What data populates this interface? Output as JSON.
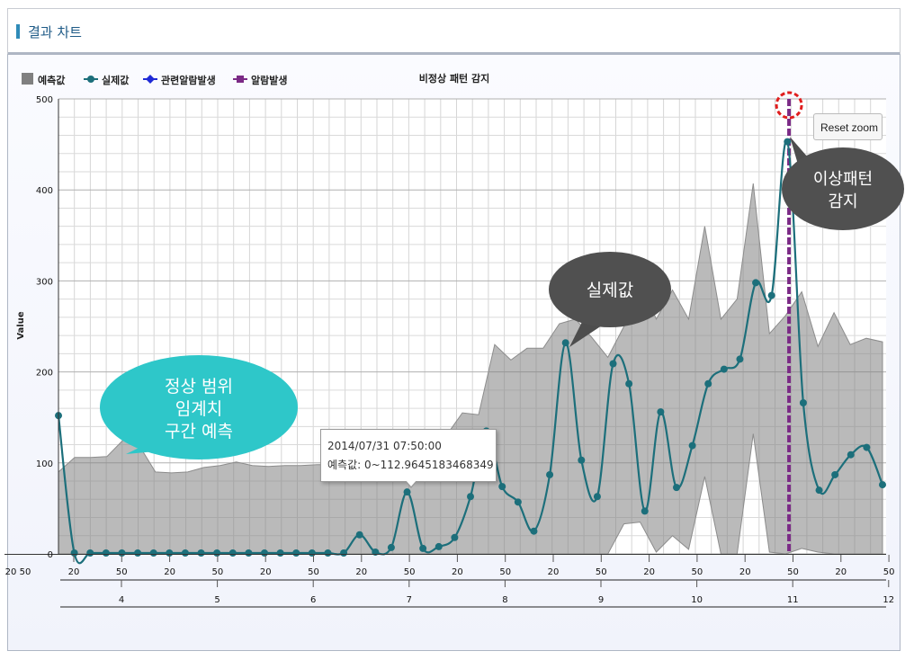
{
  "panel": {
    "title": "결과 차트"
  },
  "legend": [
    {
      "label": "예측값",
      "color": "#808080",
      "symbol": "square"
    },
    {
      "label": "실제값",
      "color": "#1c6f7b",
      "symbol": "circle-line"
    },
    {
      "label": "관련알람발생",
      "color": "#1f2ad6",
      "symbol": "diamond-line"
    },
    {
      "label": "알람발생",
      "color": "#7b2a86",
      "symbol": "square-line"
    }
  ],
  "reset_zoom_label": "Reset zoom",
  "tooltip": {
    "line1": "2014/07/31 07:50:00",
    "line2": "예측값: 0~112.9645183468349"
  },
  "callouts": {
    "normal": [
      "정상 범위",
      "임계치",
      "구간 예측"
    ],
    "actual": "실제값",
    "anomaly": [
      "이상패턴",
      "감지"
    ]
  },
  "chart_data": {
    "type": "area",
    "title": "비정상 패턴 감지",
    "ylabel": "Value",
    "ylim": [
      0,
      500
    ],
    "yticks": [
      "0",
      "100",
      "200",
      "300",
      "400",
      "500"
    ],
    "x_minor_ticks": [
      "20",
      "50",
      "20",
      "50",
      "20",
      "50",
      "20",
      "50",
      "20",
      "50",
      "20",
      "50",
      "20",
      "50",
      "20",
      "50",
      "20",
      "50",
      "20",
      "50"
    ],
    "x_minor_first": "20 50",
    "x_major_ticks": [
      "4",
      "5",
      "6",
      "7",
      "8",
      "9",
      "10",
      "11",
      "12"
    ],
    "series": [
      {
        "name": "예측값",
        "type": "arearange",
        "color": "#9a9a9a",
        "upper": [
          90,
          106,
          106,
          107,
          125,
          119,
          90,
          89,
          90,
          95,
          97,
          101,
          97,
          96,
          97,
          97,
          98,
          98,
          99,
          103,
          104,
          105,
          110,
          112,
          130,
          155,
          153,
          230,
          213,
          226,
          226,
          253,
          258,
          238,
          216,
          250,
          300,
          258,
          290,
          258,
          360,
          258,
          280,
          407,
          242,
          262,
          288,
          228,
          265,
          230,
          237,
          233
        ],
        "lower": [
          0,
          0,
          0,
          0,
          0,
          0,
          0,
          0,
          0,
          0,
          0,
          0,
          0,
          0,
          0,
          0,
          0,
          0,
          0,
          0,
          0,
          0,
          0,
          0,
          0,
          0,
          0,
          0,
          0,
          0,
          0,
          0,
          0,
          0,
          0,
          33,
          35,
          2,
          20,
          5,
          85,
          0,
          0,
          132,
          2,
          0,
          6,
          2,
          0,
          0,
          0,
          0
        ]
      },
      {
        "name": "실제값",
        "type": "spline",
        "color": "#1c6f7b",
        "values": [
          152,
          1,
          1,
          1,
          1,
          1,
          1,
          1,
          1,
          1,
          1,
          1,
          1,
          1,
          1,
          1,
          1,
          1,
          1,
          21,
          2,
          7,
          68,
          6,
          8,
          18,
          63,
          135,
          74,
          57,
          25,
          87,
          232,
          103,
          63,
          209,
          187,
          47,
          156,
          73,
          119,
          187,
          203,
          214,
          298,
          284,
          453,
          166,
          70,
          87,
          109,
          117,
          76
        ]
      }
    ],
    "alarm_x_index": 46.1,
    "legend_position": "top-left",
    "grid": true
  }
}
